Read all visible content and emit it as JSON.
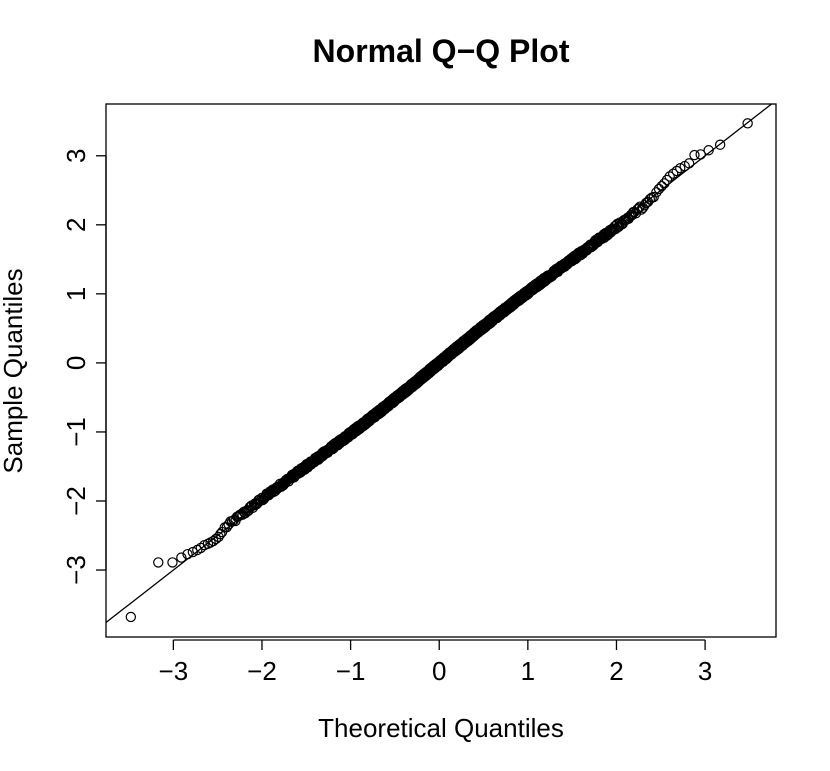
{
  "chart_data": {
    "type": "scatter",
    "title": "Normal Q−Q Plot",
    "xlabel": "Theoretical Quantiles",
    "ylabel": "Sample Quantiles",
    "xlim": [
      -3.76,
      3.8
    ],
    "ylim": [
      -3.97,
      3.75
    ],
    "x_ticks": [
      -3,
      -2,
      -1,
      0,
      1,
      2,
      3
    ],
    "x_tick_labels": [
      "−3",
      "−2",
      "−1",
      "0",
      "1",
      "2",
      "3"
    ],
    "y_ticks": [
      -3,
      -2,
      -1,
      0,
      1,
      2,
      3
    ],
    "y_tick_labels": [
      "−3",
      "−2",
      "−1",
      "0",
      "1",
      "2",
      "3"
    ],
    "grid": false,
    "marker": "open-circle",
    "reference_line": {
      "intercept": 0.0,
      "slope": 1.0
    },
    "n_points": 2000,
    "points_description": "sample quantiles track the reference line; dense band of points from about -2.4 to 2.4",
    "tail_points": [
      {
        "x": -3.48,
        "y": -3.68
      },
      {
        "x": -3.17,
        "y": -2.89
      },
      {
        "x": -3.01,
        "y": -2.89
      },
      {
        "x": -2.91,
        "y": -2.82
      },
      {
        "x": -2.84,
        "y": -2.77
      },
      {
        "x": -2.78,
        "y": -2.74
      },
      {
        "x": -2.73,
        "y": -2.71
      },
      {
        "x": -2.69,
        "y": -2.68
      },
      {
        "x": -2.65,
        "y": -2.64
      },
      {
        "x": -2.61,
        "y": -2.62
      },
      {
        "x": -2.58,
        "y": -2.6
      },
      {
        "x": -2.55,
        "y": -2.58
      },
      {
        "x": -2.52,
        "y": -2.55
      },
      {
        "x": -2.49,
        "y": -2.52
      },
      {
        "x": -2.47,
        "y": -2.48
      },
      {
        "x": -2.45,
        "y": -2.45
      },
      {
        "x": 2.45,
        "y": 2.47
      },
      {
        "x": 2.48,
        "y": 2.52
      },
      {
        "x": 2.51,
        "y": 2.56
      },
      {
        "x": 2.54,
        "y": 2.6
      },
      {
        "x": 2.57,
        "y": 2.65
      },
      {
        "x": 2.6,
        "y": 2.7
      },
      {
        "x": 2.64,
        "y": 2.74
      },
      {
        "x": 2.68,
        "y": 2.78
      },
      {
        "x": 2.72,
        "y": 2.82
      },
      {
        "x": 2.77,
        "y": 2.85
      },
      {
        "x": 2.82,
        "y": 2.89
      },
      {
        "x": 2.88,
        "y": 3.01
      },
      {
        "x": 2.95,
        "y": 3.02
      },
      {
        "x": 3.04,
        "y": 3.08
      },
      {
        "x": 3.17,
        "y": 3.16
      },
      {
        "x": 3.48,
        "y": 3.47
      }
    ],
    "colors": {
      "points": "#000000",
      "line": "#000000",
      "frame": "#000000",
      "background": "#ffffff"
    }
  }
}
